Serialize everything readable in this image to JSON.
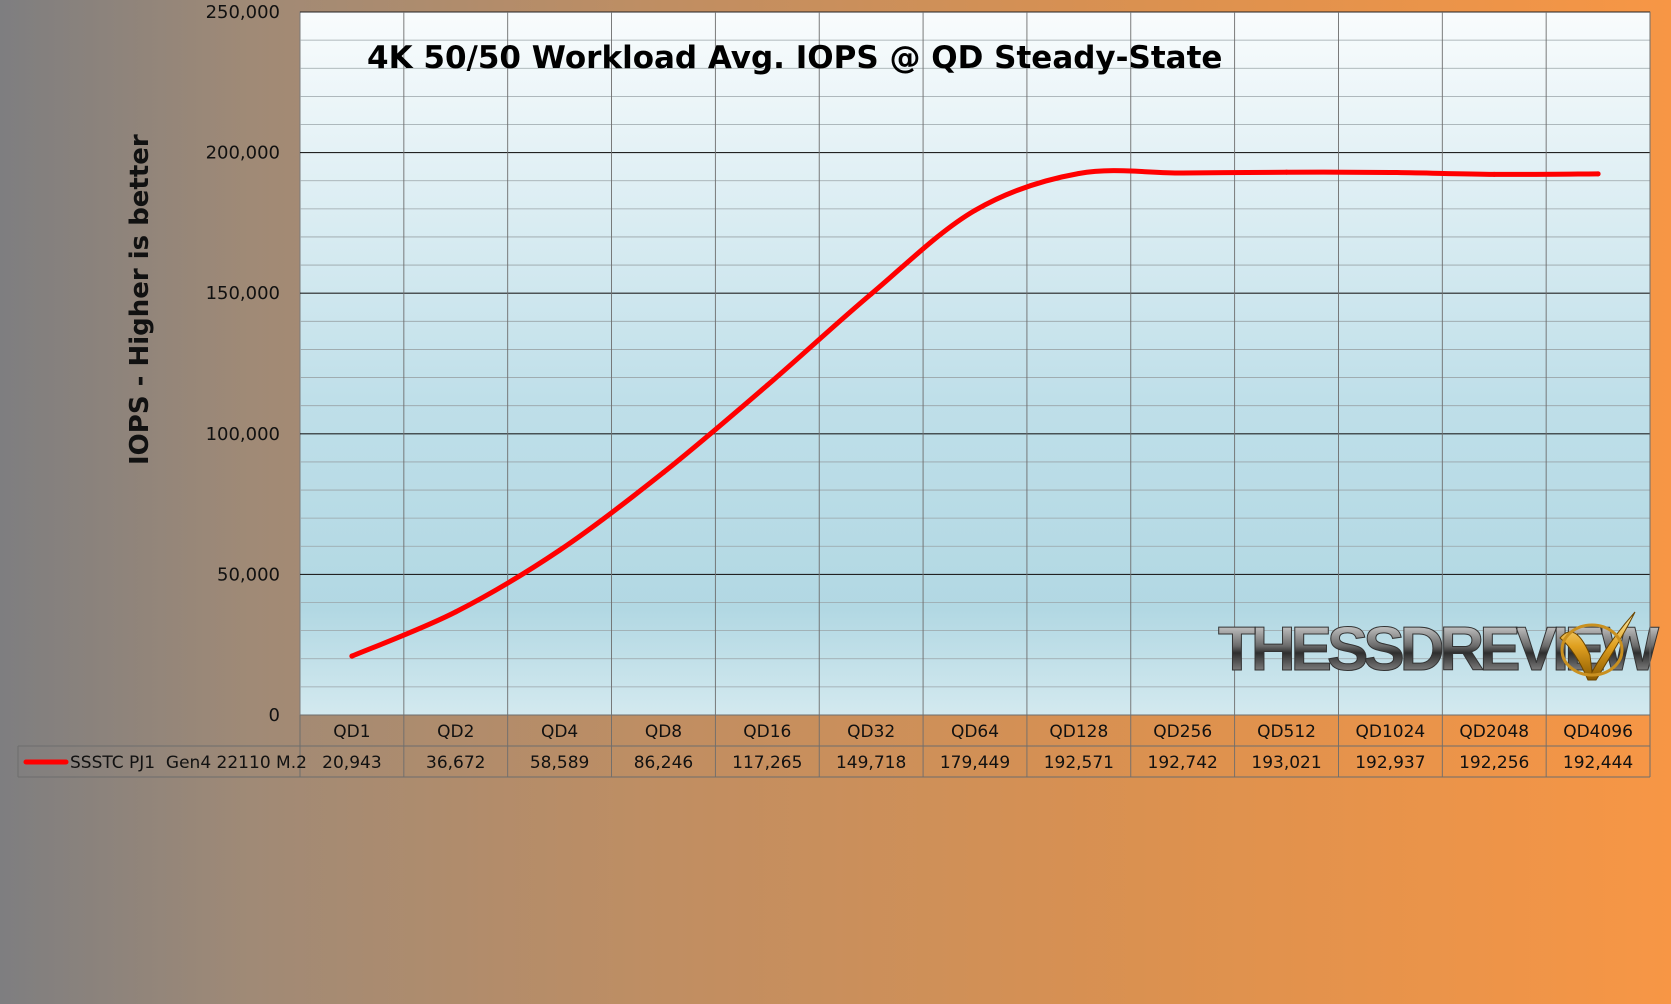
{
  "chart_data": {
    "type": "line",
    "title": "4K 50/50 Workload Avg. IOPS @ QD Steady-State",
    "ylabel": "IOPS - Higher is better",
    "xlabel": "",
    "ylim": [
      0,
      250000
    ],
    "yticks": [
      "0",
      "50,000",
      "100,000",
      "150,000",
      "200,000",
      "250,000"
    ],
    "categories": [
      "QD1",
      "QD2",
      "QD4",
      "QD8",
      "QD16",
      "QD32",
      "QD64",
      "QD128",
      "QD256",
      "QD512",
      "QD1024",
      "QD2048",
      "QD4096"
    ],
    "series": [
      {
        "name": "SSSTC PJ1  Gen4 22110 M.2",
        "color": "#ff0000",
        "values": [
          20943,
          36672,
          58589,
          86246,
          117265,
          149718,
          179449,
          192571,
          192742,
          193021,
          192937,
          192256,
          192444
        ],
        "value_labels": [
          "20,943",
          "36,672",
          "58,589",
          "86,246",
          "117,265",
          "149,718",
          "179,449",
          "192,571",
          "192,742",
          "193,021",
          "192,937",
          "192,256",
          "192,444"
        ]
      }
    ],
    "grid": true,
    "legend": "data-table"
  },
  "watermark": {
    "text_main": "THESSDREVIEW",
    "icon": "checkmark-icon"
  }
}
